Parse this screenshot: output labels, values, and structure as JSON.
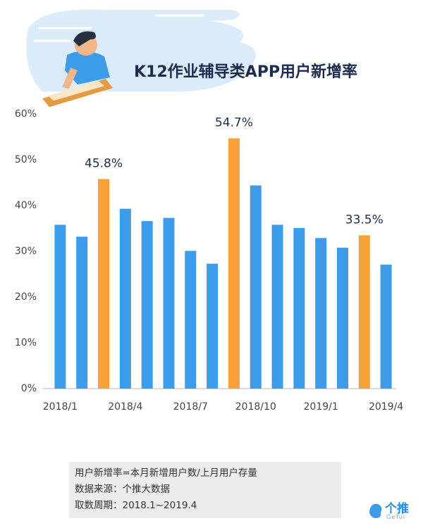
{
  "chart_data": {
    "type": "bar",
    "title": "K12作业辅导类APP用户新增率",
    "categories": [
      "2018/1",
      null,
      null,
      "2018/4",
      null,
      null,
      "2018/7",
      null,
      null,
      "2018/10",
      null,
      null,
      "2019/1",
      null,
      null,
      "2019/4"
    ],
    "values": [
      35.8,
      33.2,
      45.8,
      39.3,
      36.6,
      37.3,
      30.1,
      27.3,
      54.7,
      44.4,
      35.8,
      35.1,
      32.9,
      30.8,
      33.5,
      27.1
    ],
    "value_labels": [
      null,
      null,
      "45.8%",
      null,
      null,
      null,
      null,
      null,
      "54.7%",
      null,
      null,
      null,
      null,
      null,
      "33.5%",
      null
    ],
    "colors": [
      "#3d9be9",
      "#3d9be9",
      "#f8a03a",
      "#3d9be9",
      "#3d9be9",
      "#3d9be9",
      "#3d9be9",
      "#3d9be9",
      "#f8a03a",
      "#3d9be9",
      "#3d9be9",
      "#3d9be9",
      "#3d9be9",
      "#3d9be9",
      "#f8a03a",
      "#3d9be9"
    ],
    "ylim": [
      0,
      60
    ],
    "yticks": [
      {
        "value": 0,
        "label": "0%"
      },
      {
        "value": 10,
        "label": "10%"
      },
      {
        "value": 20,
        "label": "20%"
      },
      {
        "value": 30,
        "label": "30%"
      },
      {
        "value": 40,
        "label": "40%"
      },
      {
        "value": 50,
        "label": "50%"
      },
      {
        "value": 60,
        "label": "60%"
      }
    ],
    "grid": false
  },
  "notes": [
    "用户新增率=本月新增用户数/上月用户存量",
    "数据来源：个推大数据",
    "取数周期：2018.1~2019.4"
  ],
  "logo": {
    "name": "个推",
    "sub": "GeTui"
  }
}
